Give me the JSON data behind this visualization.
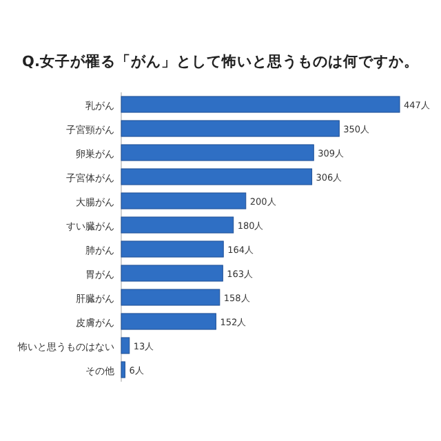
{
  "chart_data": {
    "type": "bar",
    "orientation": "horizontal",
    "title": "Q.女子が罹る「がん」として怖いと思うものは何ですか。",
    "categories": [
      "乳がん",
      "子宮頸がん",
      "卵巣がん",
      "子宮体がん",
      "大腸がん",
      "すい臓がん",
      "肺がん",
      "胃がん",
      "肝臓がん",
      "皮膚がん",
      "怖いと思うものはない",
      "その他"
    ],
    "values": [
      447,
      350,
      309,
      306,
      200,
      180,
      164,
      163,
      158,
      152,
      13,
      6
    ],
    "value_labels": [
      "447人",
      "350人",
      "309人",
      "306人",
      "200人",
      "180人",
      "164人",
      "163人",
      "158人",
      "152人",
      "13人",
      "6人"
    ],
    "color": "#2f6fc4"
  }
}
